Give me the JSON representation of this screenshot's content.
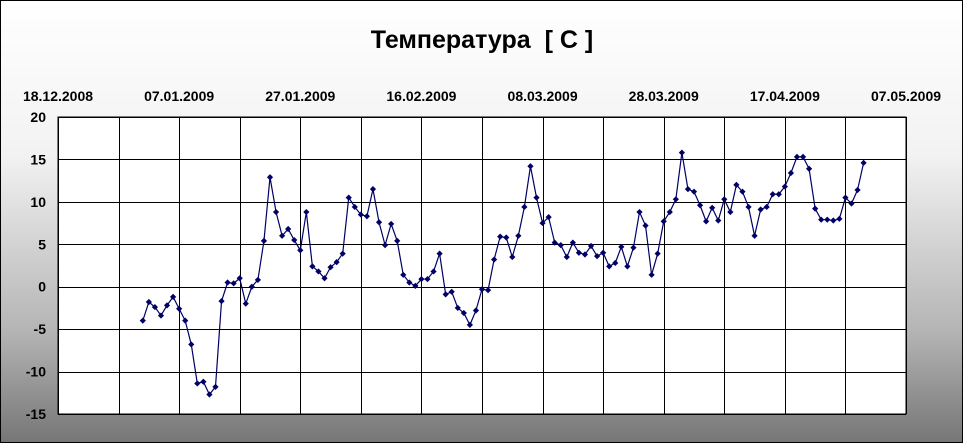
{
  "chart_data": {
    "type": "line",
    "title": "Температура  [ C ]",
    "xlabel": "",
    "ylabel": "",
    "x_axis_position": "top",
    "x_tick_labels": [
      "18.12.2008",
      "07.01.2009",
      "27.01.2009",
      "16.02.2009",
      "08.03.2009",
      "28.03.2009",
      "17.04.2009",
      "07.05.2009"
    ],
    "xlim": [
      "2008-12-18",
      "2009-05-07"
    ],
    "y_ticks": [
      "20",
      "15",
      "10",
      "5",
      "0",
      "-5",
      "-10",
      "-15"
    ],
    "ylim": [
      -15,
      20
    ],
    "grid": true,
    "legend": "none",
    "colors": {
      "line": "#000066",
      "marker": "#000066",
      "plot_bg": "#ffffff",
      "grid": "#000000",
      "gradient_top": "#ffffff",
      "gradient_bottom": "#777777"
    },
    "series": [
      {
        "start_date": "2009-01-01",
        "values": [
          -4.0,
          -1.8,
          -2.4,
          -3.4,
          -2.2,
          -1.2,
          -2.6,
          -4.0,
          -6.8,
          -11.4,
          -11.2,
          -12.7,
          -11.8,
          -1.7,
          0.5,
          0.4,
          1.0,
          -2.0,
          0.0,
          0.8,
          5.4,
          12.9,
          8.8,
          6.0,
          6.8,
          5.5,
          4.3,
          8.8,
          2.4,
          1.8,
          1.0,
          2.3,
          2.9,
          3.9,
          10.5,
          9.4,
          8.5,
          8.3,
          11.5,
          7.6,
          4.9,
          7.4,
          5.4,
          1.4,
          0.5,
          0.1,
          0.9,
          0.9,
          1.8,
          3.9,
          -0.9,
          -0.6,
          -2.5,
          -3.1,
          -4.5,
          -2.8,
          -0.3,
          -0.4,
          3.2,
          5.9,
          5.8,
          3.5,
          6.0,
          9.4,
          14.2,
          10.5,
          7.5,
          8.2,
          5.2,
          4.9,
          3.5,
          5.2,
          4.0,
          3.8,
          4.8,
          3.6,
          4.0,
          2.4,
          2.8,
          4.7,
          2.4,
          4.6,
          8.8,
          7.2,
          1.4,
          3.9,
          7.7,
          8.8,
          10.3,
          15.8,
          11.5,
          11.2,
          9.6,
          7.7,
          9.3,
          7.8,
          10.3,
          8.8,
          12.0,
          11.2,
          9.4,
          6.0,
          9.1,
          9.4,
          10.9,
          10.9,
          11.8,
          13.4,
          15.3,
          15.3,
          13.9,
          9.2,
          7.9,
          7.9,
          7.8,
          8.0,
          10.5,
          9.8,
          11.4,
          14.6
        ]
      }
    ]
  }
}
